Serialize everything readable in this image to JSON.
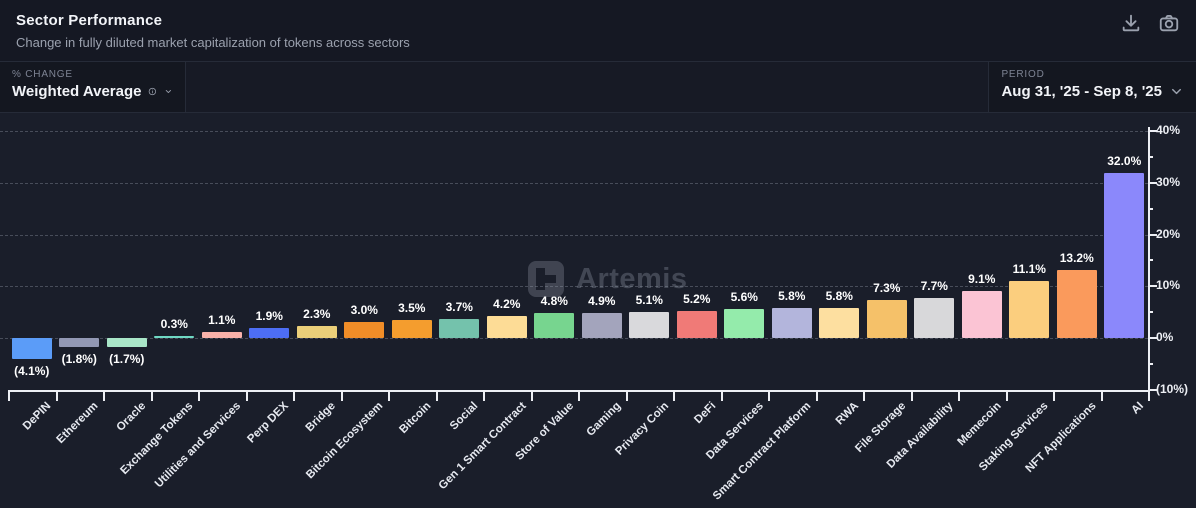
{
  "header": {
    "title": "Sector Performance",
    "subtitle": "Change in fully diluted market capitalization of tokens across sectors",
    "actions": [
      {
        "icon": "download-icon"
      },
      {
        "icon": "camera-icon"
      }
    ]
  },
  "filters": {
    "change": {
      "label": "% CHANGE",
      "value": "Weighted Average",
      "icons": [
        "info-icon",
        "chevron-down-icon"
      ]
    },
    "period": {
      "label": "PERIOD",
      "value": "Aug 31, '25 - Sep 8, '25",
      "icons": [
        "chevron-down-icon"
      ]
    }
  },
  "watermark": {
    "text": "Artemis",
    "logo": "artemis-logo"
  },
  "chart_data": {
    "type": "bar",
    "title": "Sector Performance",
    "xlabel": "",
    "ylabel": "% change",
    "ylim": [
      -10,
      40
    ],
    "grid": "dashed horizontal every 10%, axis on right side",
    "negative_format": "parentheses",
    "categories": [
      "DePIN",
      "Ethereum",
      "Oracle",
      "Exchange Tokens",
      "Utilities and Services",
      "Perp DEX",
      "Bridge",
      "Bitcoin Ecosystem",
      "Bitcoin",
      "Social",
      "Gen 1 Smart Contract",
      "Store of Value",
      "Gaming",
      "Privacy Coin",
      "DeFi",
      "Data Services",
      "Smart Contract Platform",
      "RWA",
      "File Storage",
      "Data Availability",
      "Memecoin",
      "Staking Services",
      "NFT Applications",
      "AI"
    ],
    "values": [
      -4.1,
      -1.8,
      -1.7,
      0.3,
      1.1,
      1.9,
      2.3,
      3.0,
      3.5,
      3.7,
      4.2,
      4.8,
      4.9,
      5.1,
      5.2,
      5.6,
      5.8,
      5.8,
      7.3,
      7.7,
      9.1,
      11.1,
      13.2,
      32.0
    ],
    "labels": [
      "(4.1%)",
      "(1.8%)",
      "(1.7%)",
      "0.3%",
      "1.1%",
      "1.9%",
      "2.3%",
      "3.0%",
      "3.5%",
      "3.7%",
      "4.2%",
      "4.8%",
      "4.9%",
      "5.1%",
      "5.2%",
      "5.6%",
      "5.8%",
      "5.8%",
      "7.3%",
      "7.7%",
      "9.1%",
      "11.1%",
      "13.2%",
      "32.0%"
    ],
    "colors": [
      "#5B9CF8",
      "#9298B4",
      "#A9E6C8",
      "#6FD9C4",
      "#F8B1A9",
      "#4D6EF5",
      "#EBCF79",
      "#F08D28",
      "#F49D2E",
      "#74C2AC",
      "#FDDC96",
      "#77D58F",
      "#A3A4BC",
      "#D9D9DC",
      "#F07A77",
      "#94EBAB",
      "#B3B5DC",
      "#FDDFA0",
      "#F5C169",
      "#D8D8DA",
      "#FBC4D4",
      "#FBCE7E",
      "#FA9A5C",
      "#8B88FB"
    ],
    "yticks": [
      {
        "value": 40,
        "label": "40%"
      },
      {
        "value": 30,
        "label": "30%"
      },
      {
        "value": 20,
        "label": "20%"
      },
      {
        "value": 10,
        "label": "10%"
      },
      {
        "value": 0,
        "label": "0%"
      },
      {
        "value": -10,
        "label": "(10%)"
      }
    ]
  }
}
